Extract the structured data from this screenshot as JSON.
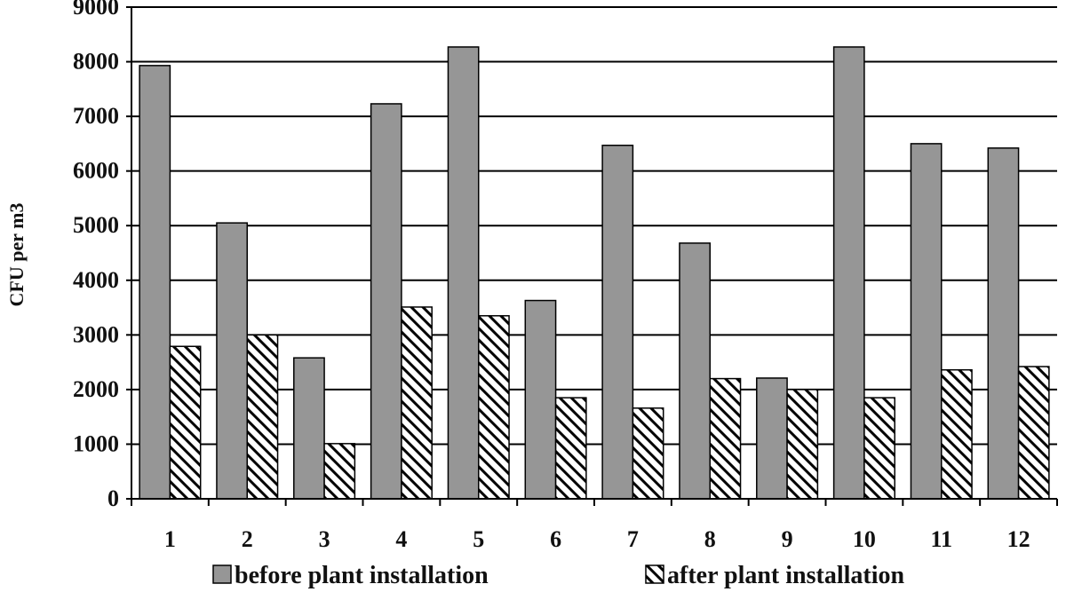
{
  "chart_data": {
    "type": "bar",
    "title": "",
    "xlabel": "",
    "ylabel": "CFU per m3",
    "ylim": [
      0,
      9000
    ],
    "yticks": [
      0,
      1000,
      2000,
      3000,
      4000,
      5000,
      6000,
      7000,
      8000,
      9000
    ],
    "grid": true,
    "legend_position": "bottom",
    "categories": [
      "1",
      "2",
      "3",
      "4",
      "5",
      "6",
      "7",
      "8",
      "9",
      "10",
      "11",
      "12"
    ],
    "series": [
      {
        "name": "before plant installation",
        "color": "#969696",
        "pattern": "solid",
        "values": [
          7930,
          5050,
          2580,
          7230,
          8270,
          3630,
          6470,
          4680,
          2210,
          8270,
          6500,
          6420
        ]
      },
      {
        "name": "after plant installation",
        "color": "#ffffff",
        "pattern": "diagonal-hatch",
        "values": [
          2790,
          3000,
          1010,
          3510,
          3350,
          1850,
          1660,
          2200,
          2000,
          1850,
          2360,
          2420
        ]
      }
    ]
  }
}
